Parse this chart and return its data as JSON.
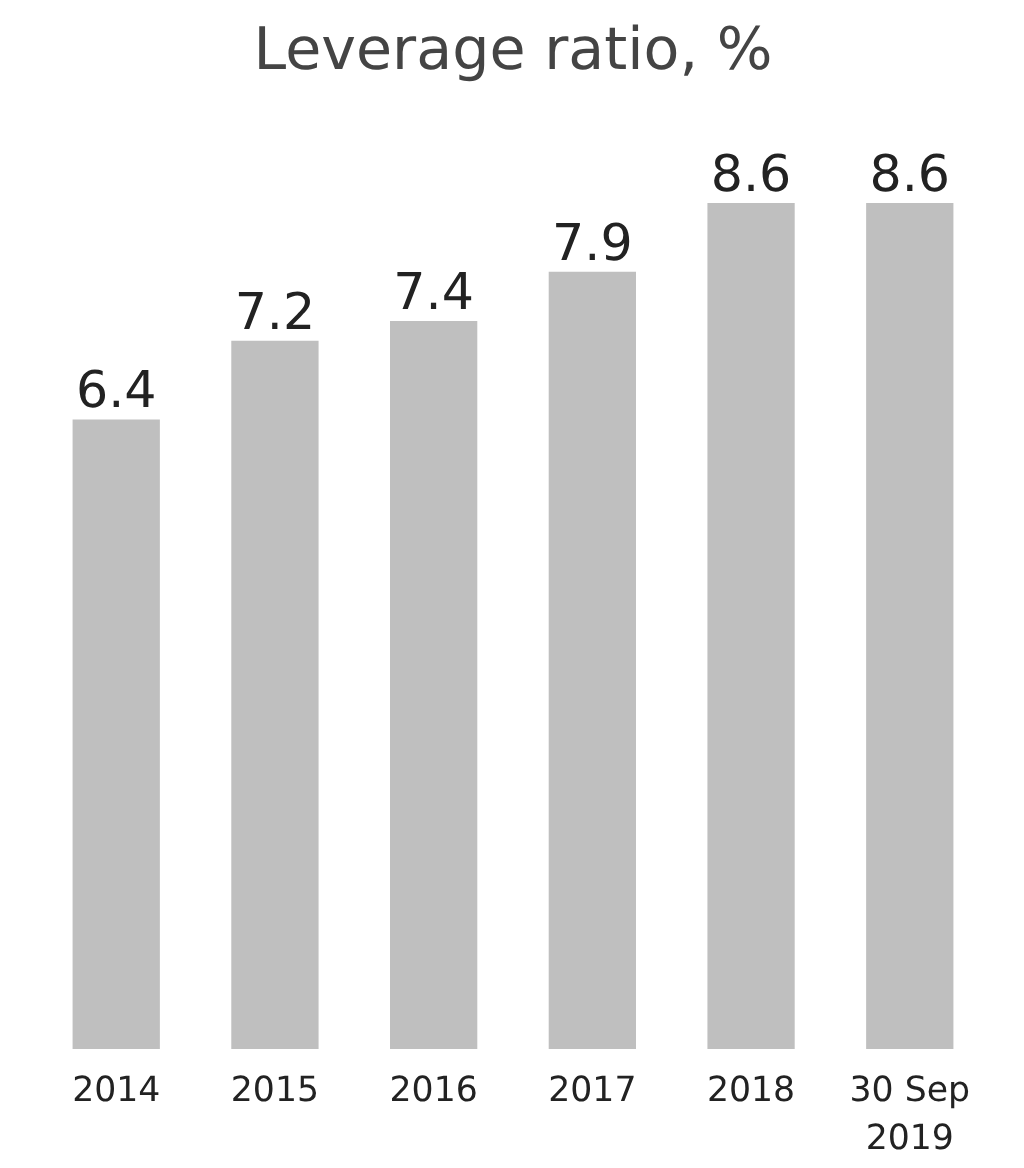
{
  "chart_data": {
    "type": "bar",
    "title": "Leverage ratio, %",
    "categories": [
      "2014",
      "2015",
      "2016",
      "2017",
      "2018",
      "30 Sep 2019"
    ],
    "values": [
      6.4,
      7.2,
      7.4,
      7.9,
      8.6,
      8.6
    ],
    "color": "#bfbfbf",
    "data_labels": true,
    "grid": false
  }
}
